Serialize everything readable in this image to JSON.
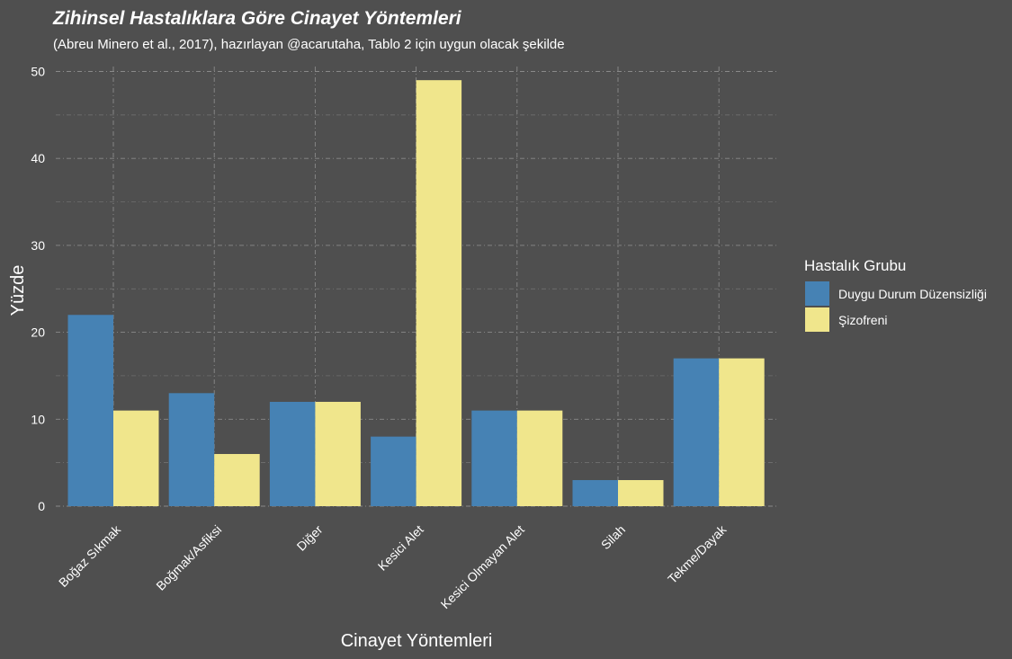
{
  "chart_data": {
    "type": "bar",
    "title": "Zihinsel Hastalıklara Göre Cinayet Yöntemleri",
    "subtitle": "(Abreu Minero et al., 2017), hazırlayan @acarutaha, Tablo 2 için uygun olacak şekilde",
    "xlabel": "Cinayet Yöntemleri",
    "ylabel": "Yüzde",
    "ylim": [
      0,
      50
    ],
    "yticks": [
      0,
      10,
      20,
      30,
      40,
      50
    ],
    "grid": true,
    "legend_placement": "right",
    "legend_title": "Hastalık Grubu",
    "categories": [
      "Boğaz Sıkmak",
      "Boğmak/Asfiksi",
      "Diğer",
      "Kesici Alet",
      "Kesici Olmayan Alet",
      "Silah",
      "Tekme/Dayak"
    ],
    "series": [
      {
        "name": "Duygu Durum Düzensizliği",
        "color": "#4682b4",
        "values": [
          22,
          13,
          12,
          8,
          11,
          3,
          17
        ]
      },
      {
        "name": "Şizofreni",
        "color": "#f0e68c",
        "values": [
          11,
          6,
          12,
          49,
          11,
          3,
          17
        ]
      }
    ]
  },
  "colors": {
    "background": "#4f4f4f",
    "text": "#ffffff"
  }
}
